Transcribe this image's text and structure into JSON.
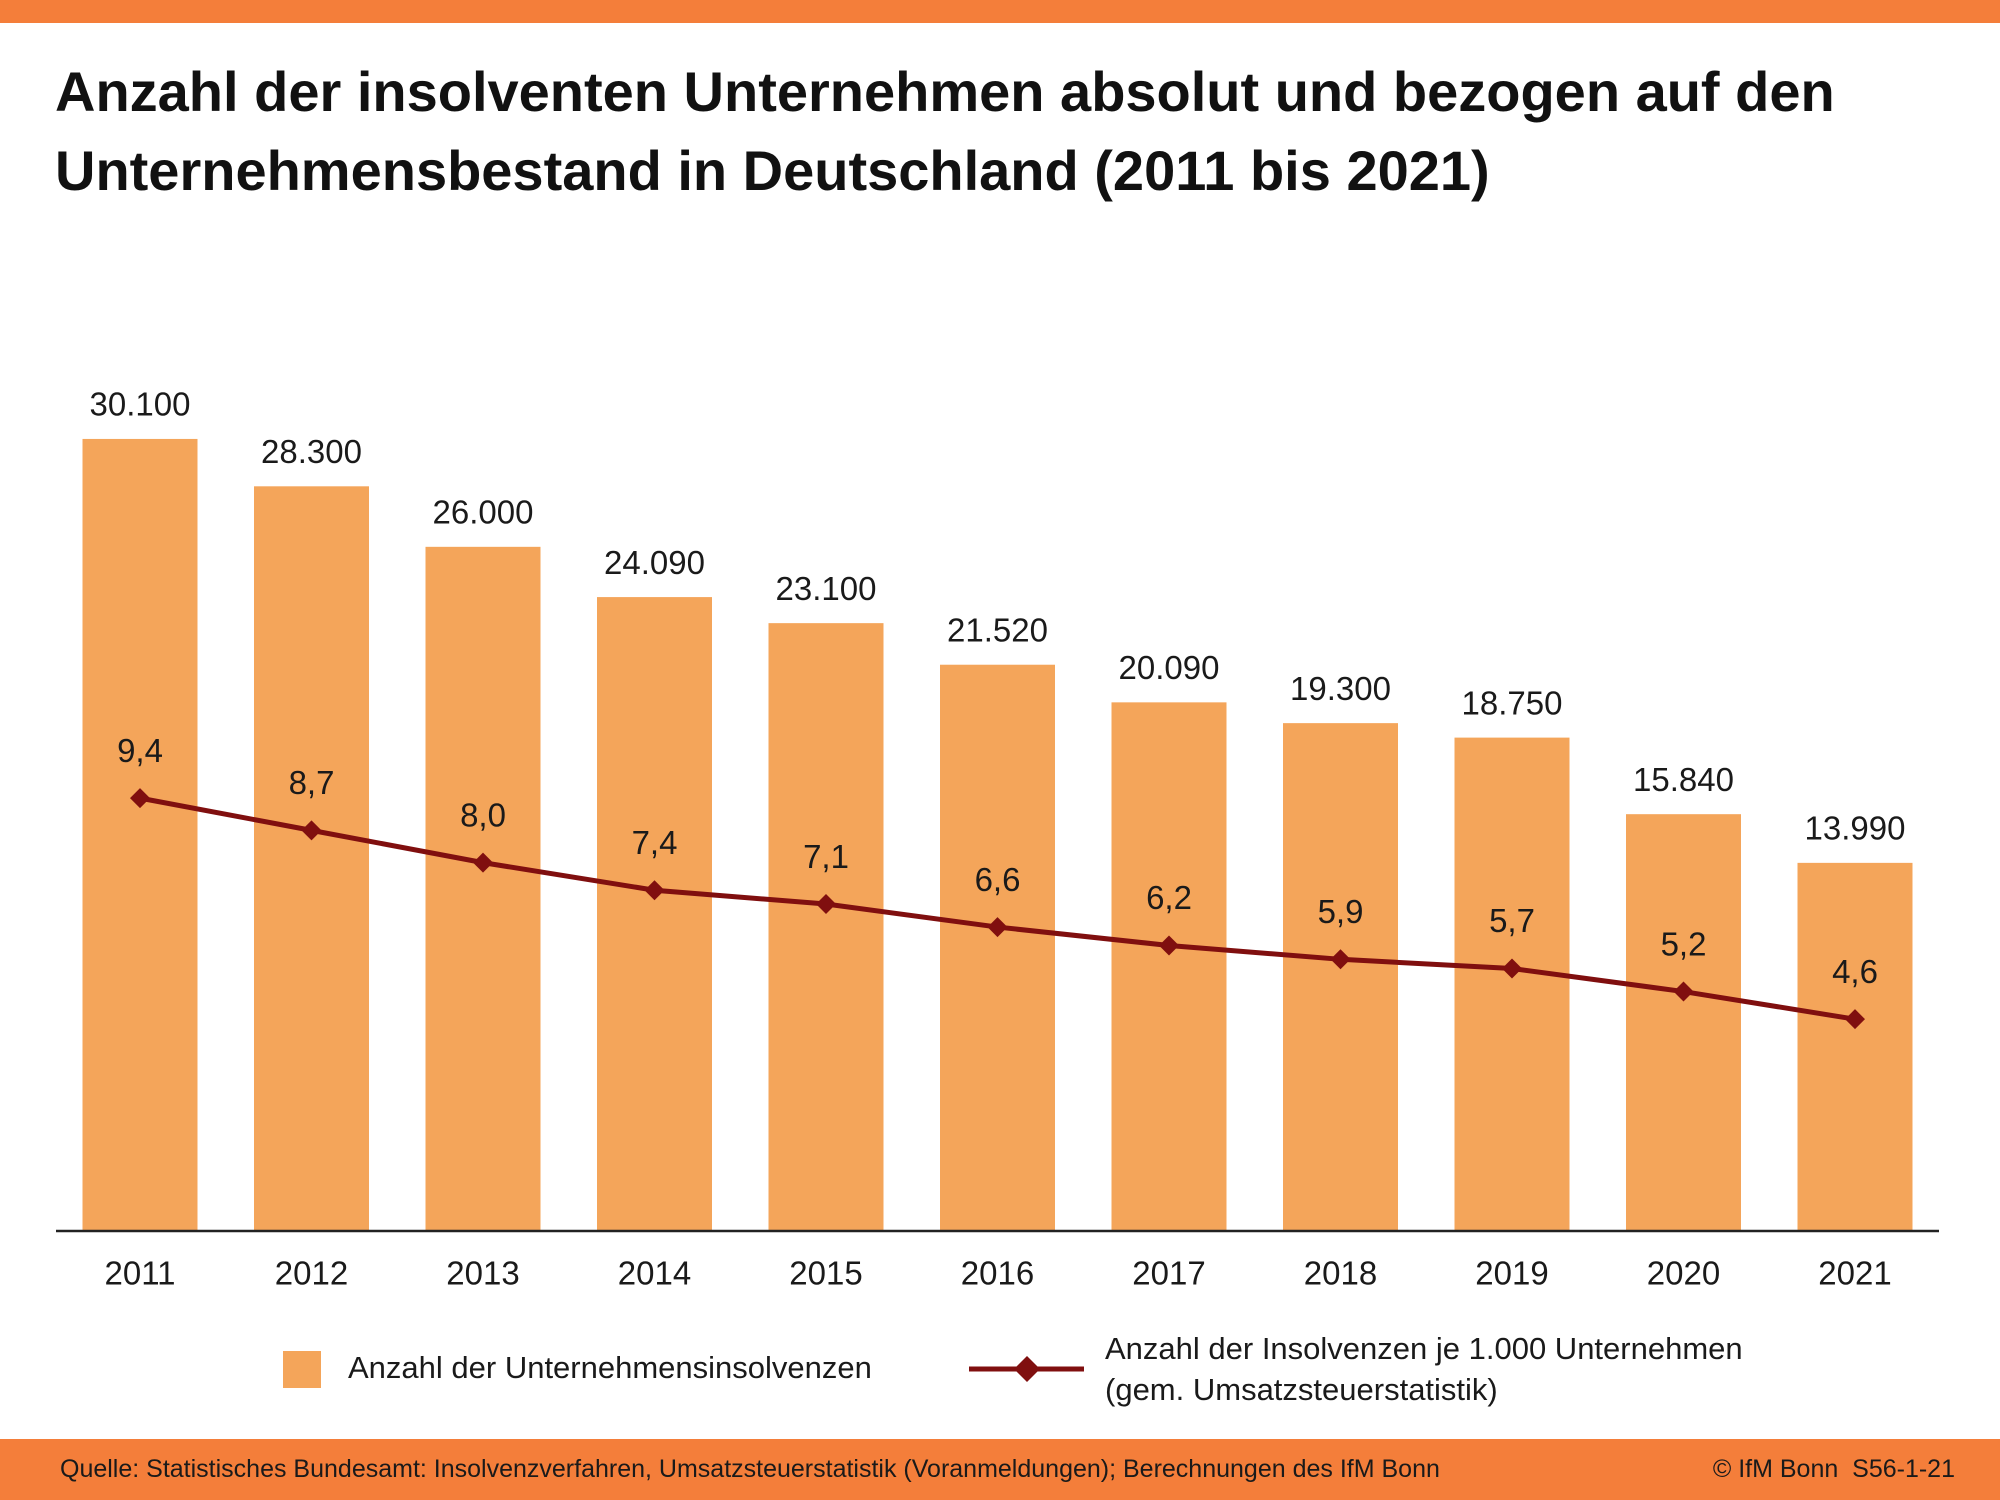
{
  "chart_data": {
    "type": "bar-line",
    "title": "Anzahl der insolventen Unternehmen absolut und bezogen auf den Unternehmensbestand in Deutschland (2011 bis 2021)",
    "categories": [
      "2011",
      "2012",
      "2013",
      "2014",
      "2015",
      "2016",
      "2017",
      "2018",
      "2019",
      "2020",
      "2021"
    ],
    "series": [
      {
        "name": "Anzahl der Unternehmensinsolvenzen",
        "type": "bar",
        "color": "#f4a55a",
        "values": [
          30100,
          28300,
          26000,
          24090,
          23100,
          21520,
          20090,
          19300,
          18750,
          15840,
          13990
        ],
        "value_labels": [
          "30.100",
          "28.300",
          "26.000",
          "24.090",
          "23.100",
          "21.520",
          "20.090",
          "19.300",
          "18.750",
          "15.840",
          "13.990"
        ]
      },
      {
        "name": "Anzahl der Insolvenzen je 1.000 Unternehmen (gem. Umsatzsteuerstatistik)",
        "type": "line",
        "axis": "y2",
        "color": "#800f0f",
        "values": [
          9.4,
          8.7,
          8.0,
          7.4,
          7.1,
          6.6,
          6.2,
          5.9,
          5.7,
          5.2,
          4.6
        ],
        "value_labels": [
          "9,4",
          "8,7",
          "8,0",
          "7,4",
          "7,1",
          "6,6",
          "6,2",
          "5,9",
          "5,7",
          "5,2",
          "4,6"
        ]
      }
    ],
    "ylim": [
      0,
      35000
    ],
    "y2lim": [
      0,
      20
    ],
    "source": "Quelle: Statistisches Bundesamt: Insolvenzverfahren, Umsatzsteuerstatistik (Voranmeldungen); Berechnungen des IfM Bonn",
    "credit": "© IfM Bonn  S56-1-21"
  }
}
